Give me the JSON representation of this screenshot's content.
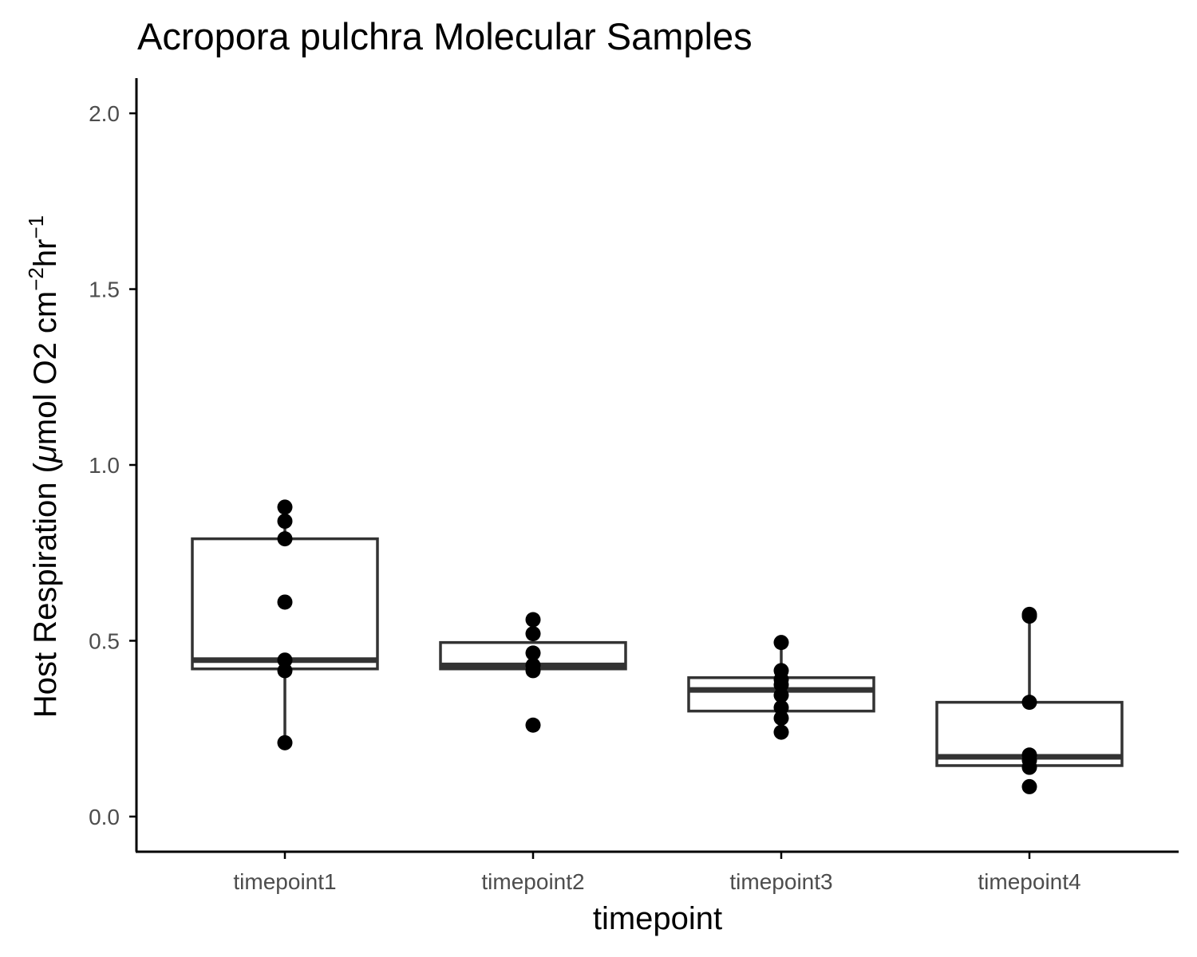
{
  "chart_data": {
    "type": "box",
    "title": "Acropora pulchra Molecular Samples",
    "xlabel": "timepoint",
    "ylabel": {
      "prefix": "Host Respiration (",
      "mu": "μ",
      "mid": "mol O2 cm",
      "sup1": "−2",
      "mid2": "hr",
      "sup2": "−1"
    },
    "ylim": [
      -0.1,
      2.1
    ],
    "yticks": [
      {
        "value": 0.0,
        "label": "0.0"
      },
      {
        "value": 0.5,
        "label": "0.5"
      },
      {
        "value": 1.0,
        "label": "1.0"
      },
      {
        "value": 1.5,
        "label": "1.5"
      },
      {
        "value": 2.0,
        "label": "2.0"
      }
    ],
    "categories": [
      "timepoint1",
      "timepoint2",
      "timepoint3",
      "timepoint4"
    ],
    "boxes": [
      {
        "category": "timepoint1",
        "whisker_low": 0.21,
        "q1": 0.42,
        "median": 0.445,
        "q3": 0.79,
        "whisker_high": 0.88
      },
      {
        "category": "timepoint2",
        "whisker_low": 0.42,
        "q1": 0.42,
        "median": 0.43,
        "q3": 0.495,
        "whisker_high": 0.495
      },
      {
        "category": "timepoint3",
        "whisker_low": 0.24,
        "q1": 0.3,
        "median": 0.36,
        "q3": 0.395,
        "whisker_high": 0.495
      },
      {
        "category": "timepoint4",
        "whisker_low": 0.145,
        "q1": 0.145,
        "median": 0.17,
        "q3": 0.325,
        "whisker_high": 0.575
      }
    ],
    "points": [
      {
        "category": "timepoint1",
        "values": [
          0.88,
          0.84,
          0.79,
          0.61,
          0.445,
          0.415,
          0.21
        ]
      },
      {
        "category": "timepoint2",
        "values": [
          0.56,
          0.52,
          0.465,
          0.43,
          0.415,
          0.26
        ]
      },
      {
        "category": "timepoint3",
        "values": [
          0.495,
          0.415,
          0.39,
          0.375,
          0.345,
          0.31,
          0.28,
          0.24
        ]
      },
      {
        "category": "timepoint4",
        "values": [
          0.575,
          0.57,
          0.325,
          0.175,
          0.16,
          0.14,
          0.085
        ]
      }
    ],
    "grid": false,
    "legend": "none",
    "colors": {
      "box_stroke": "#333333",
      "point_fill": "#000000",
      "axis": "#000000",
      "tick_text": "#4d4d4d"
    }
  }
}
